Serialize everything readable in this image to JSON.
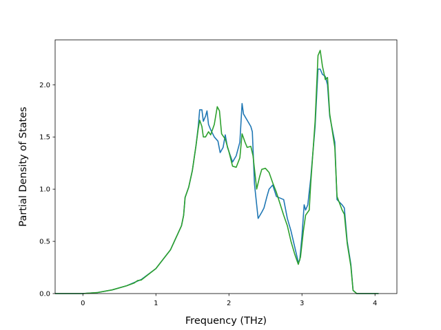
{
  "chart_data": {
    "type": "line",
    "title": "",
    "xlabel": "Frequency (THz)",
    "ylabel": "Partial Density of States",
    "xlim": [
      -0.38,
      4.3
    ],
    "ylim": [
      0.0,
      2.43
    ],
    "xticks": [
      0,
      1,
      2,
      3,
      4
    ],
    "xtick_labels": [
      "0",
      "1",
      "2",
      "3",
      "4"
    ],
    "yticks": [
      0.0,
      0.5,
      1.0,
      1.5,
      2.0
    ],
    "ytick_labels": [
      "0.0",
      "0.5",
      "1.0",
      "1.5",
      "2.0"
    ],
    "grid": false,
    "legend": "none",
    "series": [
      {
        "color": "#1f77b4",
        "points": [
          [
            -0.38,
            0.0
          ],
          [
            0.0,
            0.0
          ],
          [
            0.2,
            0.01
          ],
          [
            0.4,
            0.035
          ],
          [
            0.6,
            0.075
          ],
          [
            0.8,
            0.135
          ],
          [
            1.0,
            0.24
          ],
          [
            1.2,
            0.42
          ],
          [
            1.35,
            0.65
          ],
          [
            1.38,
            0.75
          ],
          [
            1.4,
            0.92
          ],
          [
            1.45,
            1.02
          ],
          [
            1.5,
            1.18
          ],
          [
            1.55,
            1.42
          ],
          [
            1.58,
            1.6
          ],
          [
            1.6,
            1.76
          ],
          [
            1.63,
            1.76
          ],
          [
            1.65,
            1.65
          ],
          [
            1.68,
            1.7
          ],
          [
            1.7,
            1.75
          ],
          [
            1.72,
            1.62
          ],
          [
            1.75,
            1.57
          ],
          [
            1.8,
            1.5
          ],
          [
            1.85,
            1.46
          ],
          [
            1.88,
            1.35
          ],
          [
            1.92,
            1.4
          ],
          [
            1.95,
            1.52
          ],
          [
            1.98,
            1.4
          ],
          [
            2.05,
            1.26
          ],
          [
            2.1,
            1.32
          ],
          [
            2.15,
            1.45
          ],
          [
            2.18,
            1.82
          ],
          [
            2.2,
            1.72
          ],
          [
            2.25,
            1.66
          ],
          [
            2.3,
            1.6
          ],
          [
            2.32,
            1.55
          ],
          [
            2.35,
            1.05
          ],
          [
            2.4,
            0.72
          ],
          [
            2.45,
            0.78
          ],
          [
            2.48,
            0.82
          ],
          [
            2.52,
            0.93
          ],
          [
            2.55,
            1.0
          ],
          [
            2.6,
            1.04
          ],
          [
            2.65,
            0.93
          ],
          [
            2.75,
            0.9
          ],
          [
            2.8,
            0.72
          ],
          [
            2.85,
            0.6
          ],
          [
            2.9,
            0.45
          ],
          [
            2.95,
            0.3
          ],
          [
            2.97,
            0.32
          ],
          [
            3.0,
            0.55
          ],
          [
            3.03,
            0.85
          ],
          [
            3.05,
            0.8
          ],
          [
            3.08,
            0.85
          ],
          [
            3.12,
            1.1
          ],
          [
            3.18,
            1.6
          ],
          [
            3.22,
            2.15
          ],
          [
            3.25,
            2.15
          ],
          [
            3.28,
            2.1
          ],
          [
            3.32,
            2.08
          ],
          [
            3.35,
            2.0
          ],
          [
            3.38,
            1.7
          ],
          [
            3.45,
            1.45
          ],
          [
            3.48,
            0.9
          ],
          [
            3.55,
            0.85
          ],
          [
            3.58,
            0.82
          ],
          [
            3.62,
            0.5
          ],
          [
            3.67,
            0.28
          ],
          [
            3.7,
            0.03
          ],
          [
            3.75,
            0.0
          ],
          [
            4.05,
            0.0
          ]
        ]
      },
      {
        "color": "#2ca02c",
        "points": [
          [
            -0.38,
            0.0
          ],
          [
            0.0,
            0.0
          ],
          [
            0.2,
            0.01
          ],
          [
            0.4,
            0.035
          ],
          [
            0.6,
            0.075
          ],
          [
            0.7,
            0.1
          ],
          [
            0.75,
            0.125
          ],
          [
            0.8,
            0.13
          ],
          [
            1.0,
            0.24
          ],
          [
            1.2,
            0.42
          ],
          [
            1.35,
            0.65
          ],
          [
            1.38,
            0.75
          ],
          [
            1.4,
            0.92
          ],
          [
            1.45,
            1.02
          ],
          [
            1.5,
            1.18
          ],
          [
            1.55,
            1.42
          ],
          [
            1.58,
            1.58
          ],
          [
            1.6,
            1.66
          ],
          [
            1.63,
            1.6
          ],
          [
            1.65,
            1.5
          ],
          [
            1.68,
            1.5
          ],
          [
            1.72,
            1.55
          ],
          [
            1.75,
            1.52
          ],
          [
            1.8,
            1.62
          ],
          [
            1.84,
            1.79
          ],
          [
            1.87,
            1.75
          ],
          [
            1.9,
            1.53
          ],
          [
            1.95,
            1.48
          ],
          [
            2.0,
            1.36
          ],
          [
            2.05,
            1.22
          ],
          [
            2.1,
            1.21
          ],
          [
            2.15,
            1.3
          ],
          [
            2.18,
            1.53
          ],
          [
            2.22,
            1.45
          ],
          [
            2.25,
            1.4
          ],
          [
            2.3,
            1.41
          ],
          [
            2.33,
            1.32
          ],
          [
            2.38,
            1.0
          ],
          [
            2.42,
            1.12
          ],
          [
            2.45,
            1.19
          ],
          [
            2.5,
            1.2
          ],
          [
            2.55,
            1.16
          ],
          [
            2.6,
            1.06
          ],
          [
            2.65,
            0.97
          ],
          [
            2.7,
            0.86
          ],
          [
            2.75,
            0.75
          ],
          [
            2.8,
            0.65
          ],
          [
            2.85,
            0.5
          ],
          [
            2.9,
            0.38
          ],
          [
            2.95,
            0.28
          ],
          [
            2.98,
            0.35
          ],
          [
            3.02,
            0.6
          ],
          [
            3.05,
            0.75
          ],
          [
            3.1,
            0.8
          ],
          [
            3.12,
            1.05
          ],
          [
            3.18,
            1.65
          ],
          [
            3.22,
            2.28
          ],
          [
            3.25,
            2.33
          ],
          [
            3.28,
            2.18
          ],
          [
            3.32,
            2.05
          ],
          [
            3.35,
            2.07
          ],
          [
            3.38,
            1.72
          ],
          [
            3.45,
            1.4
          ],
          [
            3.48,
            0.93
          ],
          [
            3.55,
            0.8
          ],
          [
            3.58,
            0.76
          ],
          [
            3.62,
            0.48
          ],
          [
            3.67,
            0.26
          ],
          [
            3.7,
            0.03
          ],
          [
            3.75,
            0.0
          ],
          [
            4.05,
            0.0
          ]
        ]
      }
    ]
  }
}
